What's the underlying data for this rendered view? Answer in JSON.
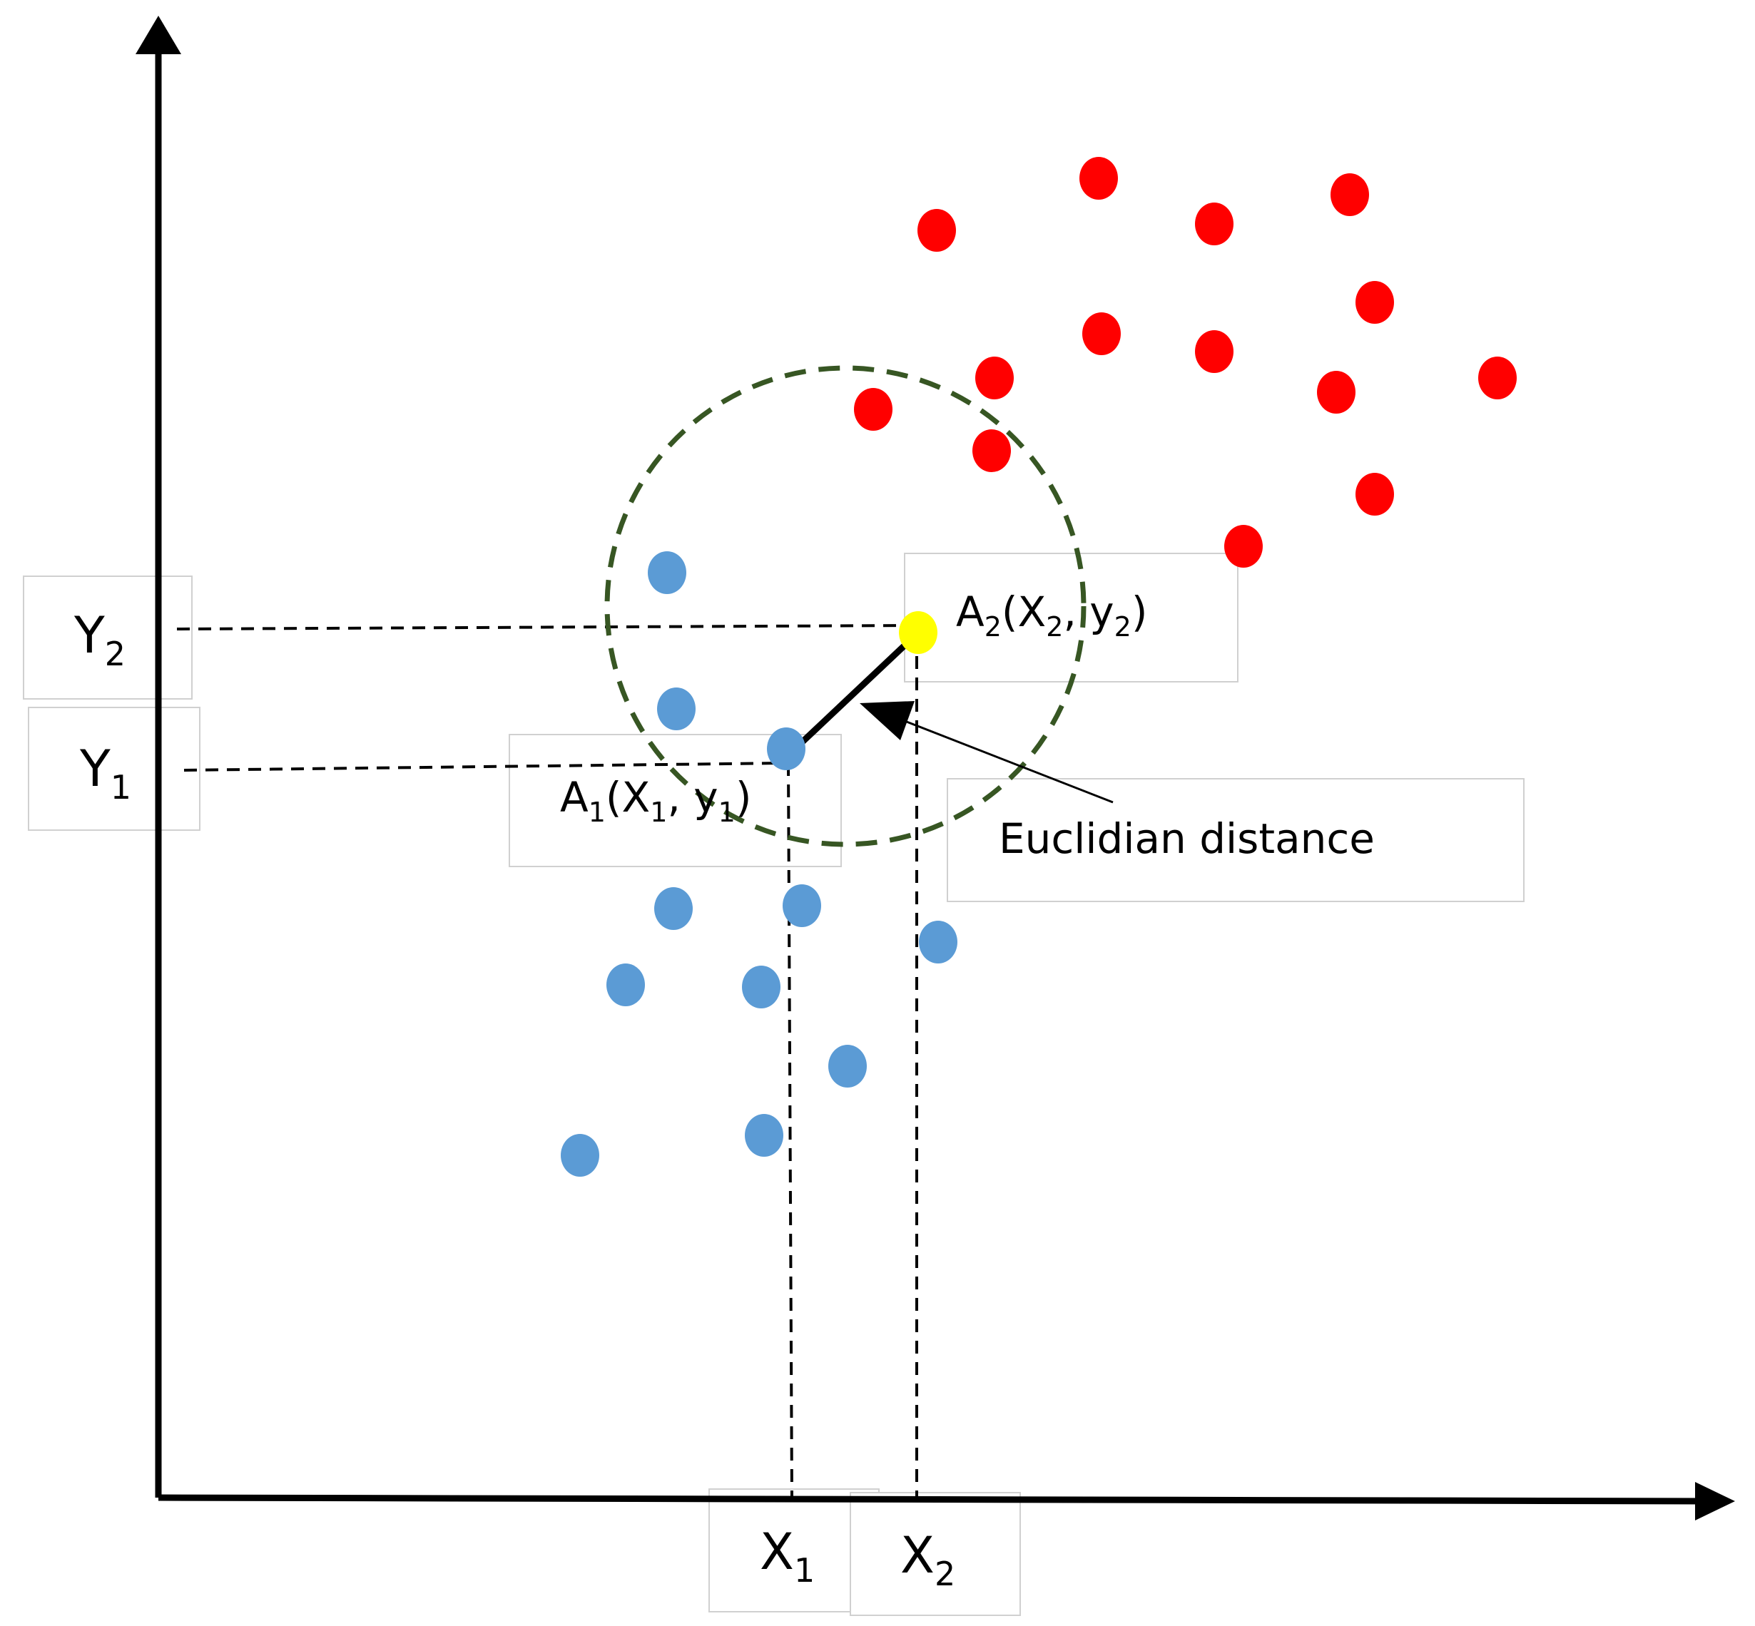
{
  "diagram": {
    "y_axis_labels": [
      {
        "main": "Y",
        "sub": "2"
      },
      {
        "main": "Y",
        "sub": "1"
      }
    ],
    "x_axis_labels": [
      {
        "main": "X",
        "sub": "1"
      },
      {
        "main": "X",
        "sub": "2"
      }
    ],
    "point_a1": {
      "name": "A",
      "name_sub": "1",
      "open": "(X",
      "x_sub": "1",
      "mid": ", y",
      "y_sub": "1",
      "close": ")"
    },
    "point_a2": {
      "name": "A",
      "name_sub": "2",
      "open": "(X",
      "x_sub": "2",
      "mid": ", y",
      "y_sub": "2",
      "close": ")"
    },
    "distance_label": "Euclidian distance",
    "colors": {
      "class_red": "#ff0000",
      "class_blue": "#5b9bd5",
      "query_point": "#ffff00",
      "neighborhood_circle": "#375623",
      "axes": "#000000"
    }
  }
}
